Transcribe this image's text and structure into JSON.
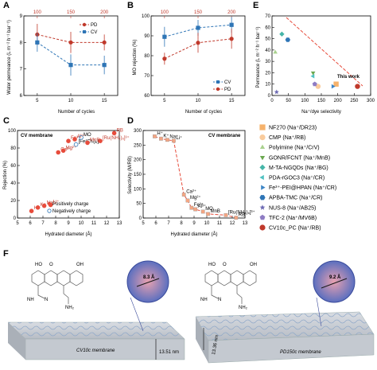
{
  "figure": {
    "panel_labels": [
      "A",
      "B",
      "C",
      "D",
      "E",
      "F"
    ],
    "panel_a": {
      "xlabel": "Number of cycles",
      "ylabel": "Water permeance (L m⁻² h⁻¹ bar⁻¹)",
      "top_ticks": [
        "100",
        "150",
        "200"
      ],
      "legend": [
        "PD",
        "CV"
      ]
    },
    "panel_b": {
      "xlabel": "Number of cycles",
      "ylabel": "MO rejection (%)",
      "top_ticks": [
        "100",
        "150",
        "200"
      ],
      "legend": [
        "CV",
        "PD"
      ]
    },
    "panel_c": {
      "xlabel": "Hydrated diameter (Å)",
      "ylabel": "Rejection (%)",
      "tag": "CV membrane",
      "legend": [
        "Positively charge",
        "Negatively charge"
      ]
    },
    "panel_d": {
      "xlabel": "Hydrated diameter (Å)",
      "ylabel": "Selectivity (M/RB)",
      "tag": "CV membrane"
    },
    "panel_e": {
      "xlabel": "Na⁺/dye selectivity",
      "ylabel": "Permeance (L m⁻² h⁻¹ bar⁻¹)",
      "annotation": "This work",
      "legend": [
        {
          "label": "NF270 (Na⁺/DR23)",
          "color": "#f6b26b",
          "shape": "square"
        },
        {
          "label": "CMP (Na⁺/RB)",
          "color": "#f9cb9c",
          "shape": "circle"
        },
        {
          "label": "Polyimine (Na⁺/CrV)",
          "color": "#a9d18e",
          "shape": "triangle-up"
        },
        {
          "label": "GONR/FCNT (Na⁺/MnB)",
          "color": "#6aa84f",
          "shape": "triangle-down"
        },
        {
          "label": "M-TA-NGQDs (Na⁺/BG)",
          "color": "#45b5a8",
          "shape": "diamond"
        },
        {
          "label": "PDA-rGOC3 (Na⁺/CR)",
          "color": "#4fc1c1",
          "shape": "triangle-left"
        },
        {
          "label": "Fe³⁺-PEI@HPAN (Na⁺/CR)",
          "color": "#3d85c6",
          "shape": "triangle-right"
        },
        {
          "label": "APBA-TMC (Na⁺/CR)",
          "color": "#2e75b6",
          "shape": "hexagon"
        },
        {
          "label": "NUS-8 (Na⁺/AB25)",
          "color": "#6d6ab3",
          "shape": "star"
        },
        {
          "label": "TFC-2 (Na⁺/MV6B)",
          "color": "#8e7cc3",
          "shape": "pentagon"
        },
        {
          "label": "CV10c_PC (Na⁺/RB)",
          "color": "#c0392b",
          "shape": "circle"
        }
      ]
    },
    "panel_f": {
      "left_label": "CV10c membrane",
      "left_thickness": "13.51 nm",
      "left_pore": "8.3 Å",
      "right_label": "PD150c membrane",
      "right_thickness": "13.36 nm",
      "right_pore": "9.2 Å",
      "chem_labels": [
        "HO",
        "OH",
        "O",
        "NH₂",
        "N",
        "NH"
      ]
    },
    "colors": {
      "red": "#c0392b",
      "blue": "#2e75b6",
      "dash_red": "#e74c3c"
    }
  },
  "chart_data": [
    {
      "panel": "A",
      "type": "line",
      "x": [
        5,
        10,
        15
      ],
      "x_top": [
        100,
        150,
        200
      ],
      "series": [
        {
          "name": "PD",
          "values": [
            8.3,
            8.0,
            8.0
          ],
          "errors": [
            0.4,
            0.4,
            0.3
          ]
        },
        {
          "name": "CV",
          "values": [
            8.0,
            7.15,
            7.15
          ],
          "errors": [
            0.35,
            0.4,
            0.35
          ]
        }
      ],
      "xlim": [
        3,
        17
      ],
      "ylim": [
        6,
        9
      ],
      "yticks": [
        6,
        7,
        8,
        9
      ],
      "xticks": [
        5,
        10,
        15
      ]
    },
    {
      "panel": "B",
      "type": "line",
      "x": [
        5,
        10,
        15
      ],
      "x_top": [
        100,
        150,
        200
      ],
      "series": [
        {
          "name": "CV",
          "values": [
            89.5,
            94.0,
            95.5
          ],
          "errors": [
            5,
            4,
            4
          ]
        },
        {
          "name": "PD",
          "values": [
            78.5,
            86.5,
            88.5
          ],
          "errors": [
            3,
            5,
            5
          ]
        }
      ],
      "xlim": [
        3,
        17
      ],
      "ylim": [
        60,
        100
      ],
      "yticks": [
        60,
        70,
        80,
        90,
        100
      ],
      "xticks": [
        5,
        10,
        15
      ]
    },
    {
      "panel": "C",
      "type": "scatter",
      "points": [
        {
          "label": "H⁺",
          "x": 6.1,
          "y": 8,
          "charge": "positive"
        },
        {
          "label": "K⁺",
          "x": 6.6,
          "y": 12,
          "charge": "positive"
        },
        {
          "label": "Na⁺",
          "x": 7.1,
          "y": 14,
          "charge": "positive"
        },
        {
          "label": "Li⁺",
          "x": 7.6,
          "y": 15,
          "charge": "positive"
        },
        {
          "label": "Ca²⁺",
          "x": 8.2,
          "y": 75,
          "charge": "positive"
        },
        {
          "label": "Mg²⁺",
          "x": 8.6,
          "y": 77,
          "charge": "positive"
        },
        {
          "label": "Fe³⁺",
          "x": 9.0,
          "y": 88,
          "charge": "positive"
        },
        {
          "label": "Al³⁺",
          "x": 9.5,
          "y": 90,
          "charge": "positive"
        },
        {
          "label": "[Fe(CN)₆]³⁻",
          "x": 9.6,
          "y": 84,
          "charge": "negative"
        },
        {
          "label": "MO",
          "x": 10.0,
          "y": 92,
          "charge": "negative"
        },
        {
          "label": "MnB",
          "x": 10.5,
          "y": 86,
          "charge": "positive"
        },
        {
          "label": "[Ru(NH₃)₆]³⁺",
          "x": 11.5,
          "y": 88,
          "charge": "positive"
        },
        {
          "label": "RB",
          "x": 12.6,
          "y": 97,
          "charge": "positive"
        }
      ],
      "xlim": [
        5,
        13
      ],
      "ylim": [
        0,
        100
      ],
      "xticks": [
        5,
        6,
        7,
        8,
        9,
        10,
        11,
        12,
        13
      ],
      "yticks": [
        0,
        20,
        40,
        60,
        80,
        100
      ]
    },
    {
      "panel": "D",
      "type": "scatter",
      "points": [
        {
          "label": "H⁺",
          "x": 5.9,
          "y": 280
        },
        {
          "label": "K⁺",
          "x": 6.4,
          "y": 272
        },
        {
          "label": "Na⁺",
          "x": 6.9,
          "y": 268
        },
        {
          "label": "Li⁺",
          "x": 7.4,
          "y": 265
        },
        {
          "label": "Ca²⁺",
          "x": 8.2,
          "y": 80
        },
        {
          "label": "Mg²⁺",
          "x": 8.5,
          "y": 60
        },
        {
          "label": "Fe³⁺",
          "x": 8.8,
          "y": 35
        },
        {
          "label": "Al³⁺",
          "x": 9.1,
          "y": 30
        },
        {
          "label": "MO",
          "x": 9.7,
          "y": 22
        },
        {
          "label": "MnB",
          "x": 10.1,
          "y": 14
        },
        {
          "label": "[Ru(NH₃)₆]³⁺",
          "x": 11.5,
          "y": 10
        },
        {
          "label": "RB",
          "x": 12.3,
          "y": 1
        }
      ],
      "xlim": [
        5,
        13
      ],
      "ylim": [
        0,
        300
      ],
      "xticks": [
        5,
        6,
        7,
        8,
        9,
        10,
        11,
        12,
        13
      ],
      "yticks": [
        0,
        50,
        100,
        150,
        200,
        250,
        300
      ]
    },
    {
      "panel": "E",
      "type": "scatter",
      "points": [
        {
          "label": "NF270 (Na⁺/DR23)",
          "x": 195,
          "y": 10
        },
        {
          "label": "CMP (Na⁺/RB)",
          "x": 140,
          "y": 8
        },
        {
          "label": "Polyimine (Na⁺/CrV)",
          "x": 10,
          "y": 38
        },
        {
          "label": "GONR/FCNT (Na⁺/MnB)",
          "x": 125,
          "y": 20
        },
        {
          "label": "M-TA-NGQDs (Na⁺/BG)",
          "x": 30,
          "y": 54
        },
        {
          "label": "PDA-rGOC3 (Na⁺/CR)",
          "x": 125,
          "y": 17
        },
        {
          "label": "Fe³⁺-PEI@HPAN (Na⁺/CR)",
          "x": 185,
          "y": 8
        },
        {
          "label": "APBA-TMC (Na⁺/CR)",
          "x": 48,
          "y": 49
        },
        {
          "label": "NUS-8 (Na⁺/AB25)",
          "x": 14,
          "y": 3
        },
        {
          "label": "TFC-2 (Na⁺/MV6B)",
          "x": 130,
          "y": 10
        },
        {
          "label": "CV10c_PC (Na⁺/RB)",
          "x": 260,
          "y": 8
        }
      ],
      "xlim": [
        0,
        300
      ],
      "ylim": [
        0,
        70
      ],
      "xticks": [
        0,
        50,
        100,
        150,
        200,
        250,
        300
      ],
      "yticks": [
        0,
        10,
        20,
        30,
        40,
        50,
        60,
        70
      ]
    }
  ]
}
